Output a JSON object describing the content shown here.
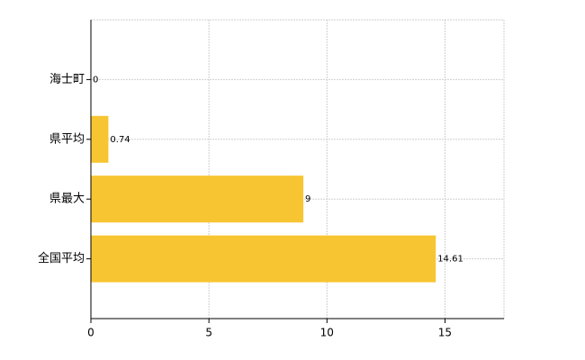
{
  "chart_data": {
    "type": "barh",
    "categories": [
      "海士町",
      "県平均",
      "県最大",
      "全国平均"
    ],
    "values": [
      0,
      0.74,
      9,
      14.61
    ],
    "color": "#f7c531",
    "xlim": [
      0,
      17.5
    ],
    "xticks": [
      0,
      5,
      10,
      15
    ],
    "grid": true
  }
}
